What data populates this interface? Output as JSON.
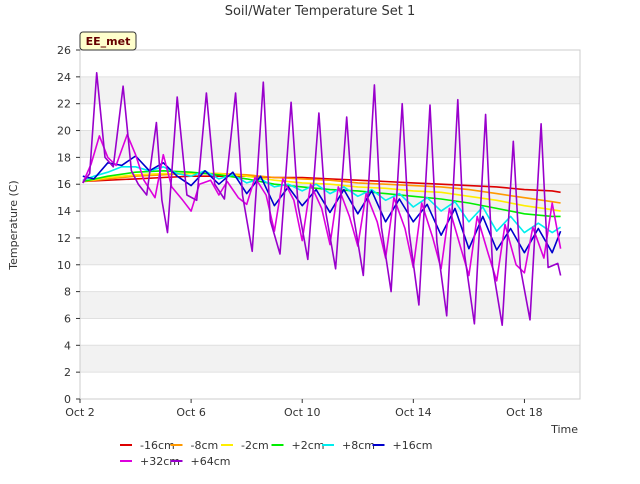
{
  "chart_data": {
    "type": "line",
    "title": "Soil/Water Temperature Set 1",
    "xlabel": "Time",
    "ylabel": "Temperature (C)",
    "badge": "EE_met",
    "xlim": [
      2.0,
      20.0
    ],
    "ylim": [
      0,
      26
    ],
    "yticks": [
      0,
      2,
      4,
      6,
      8,
      10,
      12,
      14,
      16,
      18,
      20,
      22,
      24,
      26
    ],
    "xticks": [
      {
        "value": 2,
        "label": "Oct 2"
      },
      {
        "value": 6,
        "label": "Oct 6"
      },
      {
        "value": 10,
        "label": "Oct 10"
      },
      {
        "value": 14,
        "label": "Oct 14"
      },
      {
        "value": 18,
        "label": "Oct 18"
      }
    ],
    "grid": "horizontal alternating bands",
    "legend_position": "bottom",
    "series": [
      {
        "name": "-16cm",
        "color": "#dd0000",
        "x": [
          2.1,
          3,
          4,
          5,
          6,
          7,
          8,
          9,
          10,
          11,
          12,
          13,
          14,
          15,
          16,
          17,
          18,
          19,
          19.3
        ],
        "y": [
          16.2,
          16.3,
          16.4,
          16.5,
          16.6,
          16.6,
          16.6,
          16.5,
          16.5,
          16.4,
          16.3,
          16.2,
          16.1,
          16.0,
          15.9,
          15.8,
          15.6,
          15.5,
          15.4
        ]
      },
      {
        "name": "-8cm",
        "color": "#ff9900",
        "x": [
          2.1,
          3,
          4,
          5,
          6,
          7,
          8,
          9,
          10,
          11,
          12,
          13,
          14,
          15,
          16,
          17,
          18,
          19,
          19.3
        ],
        "y": [
          16.2,
          16.4,
          16.6,
          16.7,
          16.8,
          16.8,
          16.7,
          16.5,
          16.4,
          16.3,
          16.1,
          16.0,
          15.9,
          15.8,
          15.6,
          15.3,
          15.0,
          14.7,
          14.6
        ]
      },
      {
        "name": "-2cm",
        "color": "#ffee00",
        "x": [
          2.1,
          3,
          4,
          5,
          6,
          7,
          8,
          9,
          10,
          11,
          12,
          13,
          14,
          15,
          16,
          17,
          18,
          19,
          19.3
        ],
        "y": [
          16.2,
          16.5,
          16.7,
          16.8,
          16.8,
          16.8,
          16.6,
          16.3,
          16.1,
          16.0,
          15.8,
          15.7,
          15.5,
          15.4,
          15.1,
          14.8,
          14.4,
          14.1,
          14.0
        ]
      },
      {
        "name": "+2cm",
        "color": "#00ee00",
        "x": [
          2.1,
          3,
          4,
          5,
          6,
          7,
          8,
          9,
          10,
          11,
          12,
          13,
          14,
          15,
          16,
          17,
          18,
          19,
          19.3
        ],
        "y": [
          16.2,
          16.6,
          16.9,
          17.0,
          16.9,
          16.7,
          16.4,
          16.0,
          15.8,
          15.6,
          15.5,
          15.3,
          15.1,
          14.9,
          14.6,
          14.2,
          13.8,
          13.6,
          13.6
        ]
      },
      {
        "name": "+8cm",
        "color": "#00eeee",
        "x": [
          2.1,
          2.5,
          3.0,
          3.5,
          4.0,
          4.5,
          5.0,
          5.5,
          6.0,
          6.5,
          7.0,
          7.5,
          8.0,
          8.5,
          9.0,
          9.5,
          10.0,
          10.5,
          11.0,
          11.5,
          12.0,
          12.5,
          13.0,
          13.5,
          14.0,
          14.5,
          15.0,
          15.5,
          16.0,
          16.5,
          17.0,
          17.5,
          18.0,
          18.5,
          19.0,
          19.3
        ],
        "y": [
          16.3,
          16.6,
          16.9,
          17.3,
          17.3,
          17.0,
          17.3,
          16.8,
          16.6,
          17.0,
          16.4,
          16.7,
          16.1,
          16.4,
          15.8,
          16.0,
          15.5,
          16.0,
          15.3,
          15.8,
          15.1,
          15.6,
          14.8,
          15.3,
          14.3,
          15.0,
          14.0,
          14.7,
          13.2,
          14.3,
          12.5,
          13.6,
          12.4,
          13.1,
          12.4,
          12.8
        ]
      },
      {
        "name": "+16cm",
        "color": "#0000cc",
        "x": [
          2.1,
          2.5,
          3.0,
          3.5,
          4.0,
          4.5,
          5.0,
          5.5,
          6.0,
          6.5,
          7.0,
          7.5,
          8.0,
          8.5,
          9.0,
          9.5,
          10.0,
          10.5,
          11.0,
          11.5,
          12.0,
          12.5,
          13.0,
          13.5,
          14.0,
          14.5,
          15.0,
          15.5,
          16.0,
          16.5,
          17.0,
          17.5,
          18.0,
          18.5,
          19.0,
          19.3
        ],
        "y": [
          16.6,
          16.4,
          17.6,
          17.4,
          18.1,
          17.0,
          17.6,
          16.6,
          15.9,
          17.0,
          16.0,
          16.9,
          15.3,
          16.6,
          14.4,
          15.8,
          14.4,
          15.6,
          13.9,
          15.6,
          13.8,
          15.5,
          13.2,
          14.9,
          13.2,
          14.5,
          12.2,
          14.2,
          11.2,
          13.6,
          11.1,
          12.7,
          10.9,
          12.7,
          10.9,
          12.5
        ]
      },
      {
        "name": "+32cm",
        "color": "#dd00dd",
        "x": [
          2.1,
          2.4,
          2.7,
          3.0,
          3.3,
          3.7,
          4.0,
          4.3,
          4.7,
          5.0,
          5.3,
          5.7,
          6.0,
          6.3,
          6.7,
          7.0,
          7.3,
          7.7,
          8.0,
          8.3,
          8.7,
          9.0,
          9.3,
          9.7,
          10.0,
          10.3,
          10.7,
          11.0,
          11.3,
          11.7,
          12.0,
          12.3,
          12.7,
          13.0,
          13.3,
          13.7,
          14.0,
          14.3,
          14.7,
          15.0,
          15.3,
          15.7,
          16.0,
          16.3,
          16.7,
          17.0,
          17.3,
          17.7,
          18.0,
          18.3,
          18.7,
          19.0,
          19.3
        ],
        "y": [
          16.1,
          17.5,
          19.6,
          18.0,
          17.4,
          19.7,
          18.2,
          16.3,
          15.0,
          18.2,
          15.8,
          14.8,
          14.0,
          16.0,
          16.3,
          15.2,
          16.2,
          15.0,
          14.5,
          16.5,
          15.2,
          12.5,
          16.4,
          14.8,
          11.8,
          16.0,
          14.2,
          11.5,
          15.8,
          13.6,
          11.4,
          15.3,
          13.2,
          10.5,
          15.0,
          12.7,
          9.8,
          14.6,
          12.0,
          9.7,
          14.2,
          11.3,
          9.2,
          13.6,
          10.8,
          8.8,
          13.0,
          10.0,
          9.4,
          12.8,
          10.5,
          14.6,
          11.2
        ]
      },
      {
        "name": "+64cm",
        "color": "#9900cc",
        "x": [
          2.1,
          2.35,
          2.6,
          2.9,
          3.2,
          3.55,
          3.85,
          4.1,
          4.4,
          4.75,
          4.95,
          5.15,
          5.5,
          5.85,
          6.2,
          6.55,
          6.85,
          7.2,
          7.6,
          7.85,
          8.2,
          8.6,
          8.85,
          9.2,
          9.6,
          9.85,
          10.2,
          10.6,
          10.85,
          11.2,
          11.6,
          11.85,
          12.2,
          12.6,
          12.85,
          13.2,
          13.6,
          13.85,
          14.2,
          14.6,
          14.85,
          15.2,
          15.6,
          15.85,
          16.2,
          16.6,
          16.85,
          17.2,
          17.6,
          17.85,
          18.2,
          18.6,
          18.85,
          19.2,
          19.3
        ],
        "y": [
          16.1,
          16.8,
          24.3,
          18.0,
          17.3,
          23.3,
          17.0,
          16.0,
          15.2,
          20.6,
          14.8,
          12.4,
          22.5,
          15.2,
          14.8,
          22.8,
          16.0,
          14.9,
          22.8,
          15.2,
          11.0,
          23.6,
          13.3,
          10.8,
          22.1,
          14.4,
          10.4,
          21.3,
          13.9,
          9.7,
          21.0,
          13.6,
          9.2,
          23.4,
          12.8,
          8.0,
          22.0,
          12.4,
          7.0,
          21.9,
          11.7,
          6.2,
          22.3,
          10.7,
          5.6,
          21.2,
          9.9,
          5.5,
          19.2,
          9.8,
          5.9,
          20.5,
          9.8,
          10.1,
          9.2
        ]
      }
    ]
  }
}
